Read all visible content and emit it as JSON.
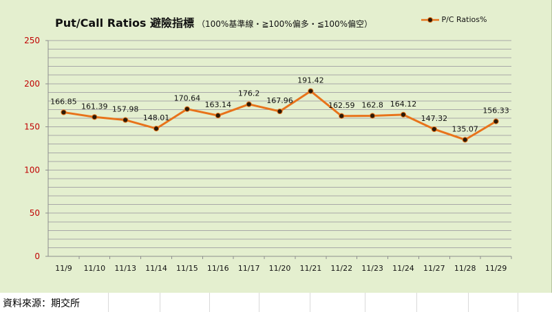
{
  "title": {
    "main": "Put/Call Ratios 避險指標",
    "sub": "（100%基準線・≧100%偏多・≦100%偏空）"
  },
  "footer": {
    "source": "資料來源：期交所"
  },
  "colors": {
    "line": "#e8731b",
    "marker": "#2b1a08",
    "grid": "#a7a7a7",
    "axis_text": "#c00000",
    "background": "#e4efcf"
  },
  "chart_data": {
    "type": "line",
    "title": "Put/Call Ratios 避險指標",
    "categories": [
      "11/9",
      "11/10",
      "11/13",
      "11/14",
      "11/15",
      "11/16",
      "11/17",
      "11/20",
      "11/21",
      "11/22",
      "11/23",
      "11/24",
      "11/27",
      "11/28",
      "11/29"
    ],
    "series": [
      {
        "name": "P/C Ratios%",
        "values": [
          166.85,
          161.39,
          157.98,
          148.01,
          170.64,
          163.14,
          176.2,
          167.96,
          191.42,
          162.59,
          162.8,
          164.12,
          147.32,
          135.07,
          156.33
        ]
      }
    ],
    "ylim": [
      0,
      250
    ],
    "yticks": [
      0,
      50,
      100,
      150,
      200,
      250
    ],
    "grid": true,
    "legend": "top-right",
    "data_labels": true
  }
}
